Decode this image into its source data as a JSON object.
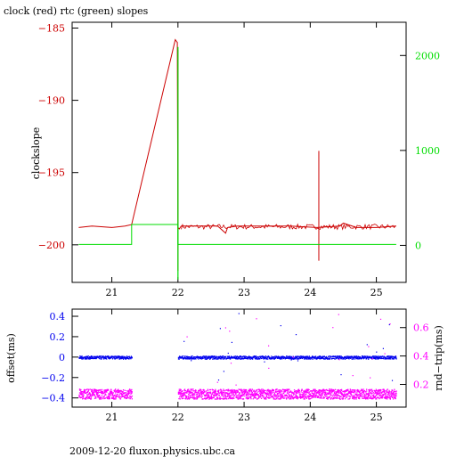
{
  "title": "clock (red) rtc (green) slopes",
  "footer": "2009-12-20 fluxon.physics.ubc.ca",
  "colors": {
    "red": "#cc0000",
    "green": "#00dd00",
    "blue": "#0000ee",
    "magenta": "#ff00ff",
    "axis": "#000000"
  },
  "chart_data": [
    {
      "type": "line",
      "title": "clock (red) rtc (green) slopes",
      "ylabel": "clockslope",
      "xlim": [
        20.4,
        25.45
      ],
      "ylim": [
        -202.6,
        -184.6
      ],
      "y2lim": [
        -390,
        2350
      ],
      "xticks": [
        21,
        22,
        23,
        24,
        25
      ],
      "yticks": [
        -185,
        -190,
        -195,
        -200
      ],
      "y2ticks": [
        0,
        1000,
        2000
      ],
      "series": [
        {
          "axis": "left",
          "x": [
            20.5,
            20.7,
            21.0,
            21.2,
            21.3,
            21.96,
            21.99,
            22.0,
            22.02,
            22.05,
            22.3,
            22.6,
            22.72,
            22.75,
            22.9,
            23.3,
            23.7,
            24.1,
            24.45,
            24.5,
            24.7,
            25.0,
            25.3
          ],
          "y": [
            -198.8,
            -198.7,
            -198.8,
            -198.7,
            -198.6,
            -185.8,
            -186.0,
            -198.8,
            -198.9,
            -198.7,
            -198.7,
            -198.7,
            -199.2,
            -198.8,
            -198.7,
            -198.7,
            -198.7,
            -198.8,
            -198.7,
            -198.5,
            -198.8,
            -198.8,
            -198.7
          ]
        },
        {
          "axis": "left",
          "spikes": [
            {
              "x": 22.0,
              "y_from": -186.5,
              "y_to": -201.8
            },
            {
              "x": 24.13,
              "y_from": -193.5,
              "y_to": -201.1
            }
          ]
        },
        {
          "axis": "right",
          "x": [
            20.5,
            21.3,
            21.3,
            22.0,
            22.0,
            25.3
          ],
          "y": [
            10,
            10,
            220,
            220,
            10,
            10
          ]
        },
        {
          "axis": "right",
          "spikes": [
            {
              "x": 22.0,
              "y_from": 2090,
              "y_to": -360
            }
          ]
        }
      ]
    },
    {
      "type": "scatter",
      "xlabel": "",
      "ylabel": "offset(ms)",
      "y2label": "rnd−trip(ms)",
      "xlim": [
        20.4,
        25.45
      ],
      "ylim": [
        -0.49,
        0.47
      ],
      "y2lim": [
        0.04,
        0.73
      ],
      "xticks": [
        21,
        22,
        23,
        24,
        25
      ],
      "yticks": [
        0.4,
        0.2,
        0,
        -0.2,
        -0.4
      ],
      "y2ticks": [
        0.6,
        0.4,
        0.2
      ],
      "series": [
        {
          "name": "offset",
          "axis": "left",
          "x_ranges": [
            [
              20.5,
              21.3
            ],
            [
              22.0,
              25.3
            ]
          ],
          "y": 0.0,
          "spread": 0.015
        },
        {
          "name": "rnd-trip",
          "axis": "right",
          "x_ranges": [
            [
              20.5,
              21.3
            ],
            [
              22.0,
              25.3
            ]
          ],
          "y": 0.135,
          "spread": 0.035
        }
      ]
    }
  ]
}
